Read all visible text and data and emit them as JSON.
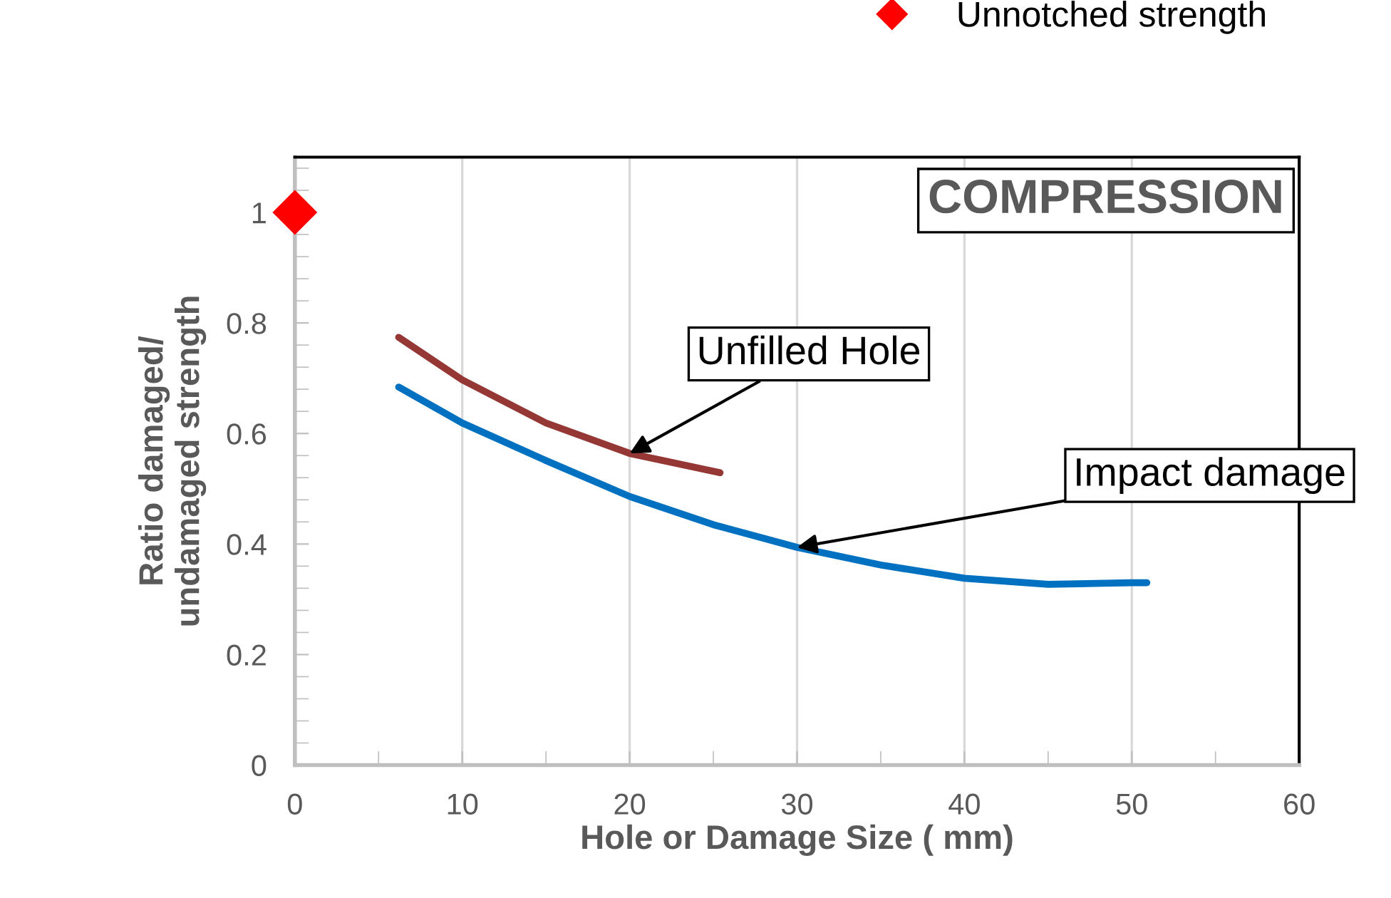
{
  "chart_data": {
    "type": "line",
    "xlabel": "Hole or Damage Size ( mm)",
    "ylabel": "Ratio damaged/\nundamaged strength",
    "xlim": [
      0,
      60
    ],
    "xticks": [
      0,
      10,
      20,
      30,
      40,
      50,
      60
    ],
    "ylim": [
      0,
      1.1
    ],
    "yticks": [
      0,
      0.2,
      0.4,
      0.6,
      0.8,
      1
    ],
    "grid": "x",
    "legend": "top right",
    "line_style": "solid",
    "series": [
      {
        "name": "Unnotched strength",
        "type": "scatter",
        "marker": "diamond",
        "color": "#ff0000",
        "x": [
          0
        ],
        "values": [
          1
        ]
      },
      {
        "color": "#953735",
        "x": [
          6.2,
          10,
          15,
          20,
          25.4
        ],
        "values": [
          0.774,
          0.697,
          0.619,
          0.564,
          0.529
        ]
      },
      {
        "color": "#0070c0",
        "x": [
          6.2,
          10,
          15,
          20,
          25,
          30,
          35,
          40,
          45,
          50,
          50.9
        ],
        "values": [
          0.684,
          0.619,
          0.551,
          0.486,
          0.435,
          0.394,
          0.362,
          0.338,
          0.327,
          0.33,
          0.33
        ]
      }
    ],
    "annotations": [
      "COMPRESSION",
      {
        "text": "Unfilled Hole",
        "x": 20,
        "y": 0.564
      },
      {
        "text": "Impact damage",
        "x": 30,
        "y": 0.394
      }
    ]
  }
}
